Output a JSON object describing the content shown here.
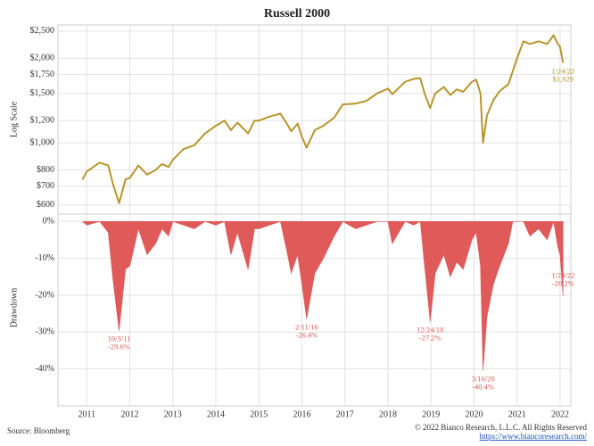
{
  "chart_data": [
    {
      "type": "line",
      "title": "Russell 2000",
      "y_label": "Log Scale",
      "log_scale": true,
      "grid": true,
      "x": [
        2010.9,
        2011.0,
        2011.3,
        2011.5,
        2011.6,
        2011.75,
        2011.9,
        2012.0,
        2012.2,
        2012.4,
        2012.6,
        2012.75,
        2012.9,
        2013.0,
        2013.25,
        2013.5,
        2013.75,
        2014.0,
        2014.2,
        2014.35,
        2014.5,
        2014.75,
        2014.9,
        2015.0,
        2015.25,
        2015.5,
        2015.65,
        2015.75,
        2015.9,
        2016.0,
        2016.11,
        2016.3,
        2016.5,
        2016.75,
        2016.95,
        2017.25,
        2017.5,
        2017.75,
        2018.0,
        2018.1,
        2018.4,
        2018.6,
        2018.75,
        2018.85,
        2018.98,
        2019.1,
        2019.3,
        2019.45,
        2019.6,
        2019.75,
        2019.95,
        2020.05,
        2020.15,
        2020.21,
        2020.3,
        2020.45,
        2020.6,
        2020.8,
        2020.9,
        2021.0,
        2021.15,
        2021.3,
        2021.5,
        2021.7,
        2021.85,
        2021.95,
        2022.0,
        2022.07
      ],
      "series": [
        {
          "color": "#b8962e",
          "values": [
            740,
            790,
            850,
            830,
            720,
            609,
            740,
            750,
            830,
            770,
            800,
            840,
            820,
            870,
            950,
            980,
            1080,
            1150,
            1200,
            1110,
            1180,
            1080,
            1200,
            1200,
            1240,
            1270,
            1170,
            1100,
            1170,
            1050,
            960,
            1110,
            1150,
            1230,
            1370,
            1380,
            1410,
            1500,
            1560,
            1490,
            1650,
            1690,
            1700,
            1500,
            1330,
            1500,
            1580,
            1480,
            1550,
            1520,
            1650,
            1680,
            1500,
            1000,
            1250,
            1420,
            1530,
            1620,
            1800,
            2000,
            2300,
            2250,
            2300,
            2250,
            2418,
            2250,
            2200,
            1929
          ]
        }
      ],
      "xlim": [
        2010.33,
        2022.25
      ],
      "ylim": [
        557,
        2630
      ],
      "yticks": [
        {
          "value": 600,
          "label": "$600"
        },
        {
          "value": 700,
          "label": "$700"
        },
        {
          "value": 800,
          "label": "$800"
        },
        {
          "value": 1000,
          "label": "$1,000"
        },
        {
          "value": 1200,
          "label": "$1,200"
        },
        {
          "value": 1500,
          "label": "$1,500"
        },
        {
          "value": 1750,
          "label": "$1,750"
        },
        {
          "value": 2000,
          "label": "$2,000"
        },
        {
          "value": 2500,
          "label": "$2,500"
        }
      ],
      "annotations": [
        {
          "x": 2022.07,
          "value": 1929,
          "date": "1/24/22",
          "value_label": "$1,929"
        }
      ]
    },
    {
      "type": "area",
      "y_label": "Drawdown",
      "grid": true,
      "color": "#e05a5a",
      "x": [
        2010.9,
        2011.0,
        2011.3,
        2011.5,
        2011.6,
        2011.75,
        2011.9,
        2012.0,
        2012.2,
        2012.4,
        2012.6,
        2012.75,
        2012.9,
        2013.0,
        2013.25,
        2013.5,
        2013.75,
        2014.0,
        2014.2,
        2014.35,
        2014.5,
        2014.75,
        2014.9,
        2015.0,
        2015.25,
        2015.5,
        2015.65,
        2015.75,
        2015.9,
        2016.0,
        2016.11,
        2016.3,
        2016.5,
        2016.75,
        2016.95,
        2017.25,
        2017.5,
        2017.75,
        2018.0,
        2018.1,
        2018.4,
        2018.6,
        2018.75,
        2018.85,
        2018.98,
        2019.1,
        2019.3,
        2019.45,
        2019.6,
        2019.75,
        2019.95,
        2020.05,
        2020.15,
        2020.21,
        2020.3,
        2020.45,
        2020.6,
        2020.8,
        2020.9,
        2021.0,
        2021.15,
        2021.3,
        2021.5,
        2021.7,
        2021.85,
        2021.95,
        2022.0,
        2022.07
      ],
      "values": [
        0,
        -1,
        0,
        -3,
        -15,
        -29.6,
        -13,
        -12,
        -2,
        -9,
        -6,
        -2,
        -4,
        0,
        -1,
        -2,
        0,
        -1,
        0,
        -9,
        -3,
        -13,
        -2,
        -2,
        -1,
        0,
        -8,
        -14,
        -9,
        -17,
        -26.4,
        -14,
        -10,
        -4,
        0,
        -2,
        -1,
        0,
        0,
        -6,
        0,
        -1,
        0,
        -12,
        -27.2,
        -14,
        -9,
        -15,
        -11,
        -13,
        -5,
        -3,
        -12,
        -40.4,
        -26,
        -17,
        -12,
        -6,
        0,
        0,
        0,
        -4,
        -2,
        -5,
        0,
        -7,
        -9,
        -20.2
      ],
      "xlim": [
        2010.33,
        2022.25
      ],
      "ylim": [
        -50,
        2
      ],
      "xticks": [
        2011,
        2012,
        2013,
        2014,
        2015,
        2016,
        2017,
        2018,
        2019,
        2020,
        2021,
        2022
      ],
      "yticks": [
        {
          "value": 0,
          "label": "0%"
        },
        {
          "value": -10,
          "label": "-10%"
        },
        {
          "value": -20,
          "label": "-20%"
        },
        {
          "value": -30,
          "label": "-30%"
        },
        {
          "value": -40,
          "label": "-40%"
        }
      ],
      "annotations": [
        {
          "x": 2011.75,
          "value": -29.6,
          "date": "10/3/11",
          "value_label": "-29.6%"
        },
        {
          "x": 2016.11,
          "value": -26.4,
          "date": "2/11/16",
          "value_label": "-26.4%"
        },
        {
          "x": 2018.98,
          "value": -27.2,
          "date": "12/24/18",
          "value_label": "-27.2%"
        },
        {
          "x": 2020.21,
          "value": -40.4,
          "date": "3/16/20",
          "value_label": "-40.4%"
        },
        {
          "x": 2022.07,
          "value": -20.2,
          "date": "1/24/22",
          "value_label": "-20.2%"
        }
      ]
    }
  ],
  "footer": {
    "source": "Source: Bloomberg",
    "copyright": "© 2022 Bianco Research, L.L.C. All Rights Reserved",
    "url": "https://www.biancoresearch.com/"
  }
}
